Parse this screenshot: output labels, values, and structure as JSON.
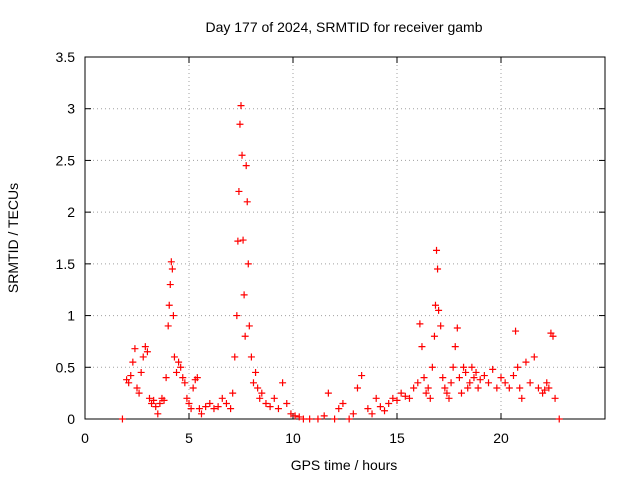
{
  "chart_data": {
    "type": "scatter",
    "title": "Day 177 of 2024, SRMTID for receiver gamb",
    "xlabel": "GPS time / hours",
    "ylabel": "SRMTID / TECUs",
    "xlim": [
      0,
      25
    ],
    "ylim": [
      0,
      3.5
    ],
    "xticks": [
      0,
      5,
      10,
      15,
      20
    ],
    "yticks": [
      0,
      0.5,
      1,
      1.5,
      2,
      2.5,
      3,
      3.5
    ],
    "xtick_labels": [
      "0",
      "5",
      "10",
      "15",
      "20"
    ],
    "ytick_labels": [
      "0",
      "0.5",
      "1",
      "1.5",
      "2",
      "2.5",
      "3",
      "3.5"
    ],
    "grid": true,
    "marker": "plus",
    "color": "#ff0000",
    "series": [
      {
        "name": "gamb",
        "x": [
          1.8,
          2.0,
          2.1,
          2.2,
          2.3,
          2.4,
          2.5,
          2.6,
          2.7,
          2.8,
          2.9,
          3.0,
          3.1,
          3.2,
          3.3,
          3.4,
          3.5,
          3.6,
          3.7,
          3.8,
          3.9,
          4.0,
          4.05,
          4.1,
          4.15,
          4.2,
          4.25,
          4.3,
          4.4,
          4.5,
          4.6,
          4.7,
          4.8,
          4.9,
          5.0,
          5.1,
          5.2,
          5.3,
          5.4,
          5.5,
          5.6,
          5.8,
          6.0,
          6.2,
          6.4,
          6.6,
          6.8,
          7.0,
          7.1,
          7.2,
          7.3,
          7.35,
          7.4,
          7.45,
          7.5,
          7.55,
          7.6,
          7.65,
          7.7,
          7.75,
          7.8,
          7.85,
          7.9,
          8.0,
          8.1,
          8.2,
          8.3,
          8.4,
          8.5,
          8.7,
          8.9,
          9.1,
          9.3,
          9.5,
          9.7,
          9.9,
          10.1,
          10.3,
          10.5,
          10.8,
          11.2,
          11.5,
          11.7,
          12.0,
          12.2,
          12.4,
          12.7,
          12.9,
          13.1,
          13.3,
          13.6,
          13.8,
          14.0,
          14.2,
          14.4,
          14.6,
          14.8,
          15.0,
          15.2,
          15.4,
          15.6,
          15.8,
          16.0,
          16.1,
          16.2,
          16.3,
          16.4,
          16.5,
          16.6,
          16.7,
          16.8,
          16.85,
          16.9,
          16.95,
          17.0,
          17.1,
          17.2,
          17.3,
          17.4,
          17.5,
          17.6,
          17.7,
          17.8,
          17.9,
          18.0,
          18.1,
          18.2,
          18.3,
          18.4,
          18.5,
          18.6,
          18.7,
          18.8,
          18.9,
          19.0,
          19.2,
          19.4,
          19.6,
          19.8,
          20.0,
          20.2,
          20.4,
          20.6,
          20.7,
          20.8,
          20.9,
          21.0,
          21.2,
          21.4,
          21.6,
          21.8,
          22.0,
          22.1,
          22.2,
          22.3,
          22.4,
          22.5,
          22.6,
          22.8
        ],
        "y": [
          0.0,
          0.38,
          0.35,
          0.42,
          0.55,
          0.68,
          0.3,
          0.25,
          0.45,
          0.6,
          0.7,
          0.65,
          0.2,
          0.15,
          0.18,
          0.12,
          0.05,
          0.15,
          0.2,
          0.18,
          0.4,
          0.9,
          1.1,
          1.3,
          1.52,
          1.45,
          1.0,
          0.6,
          0.45,
          0.55,
          0.5,
          0.4,
          0.35,
          0.2,
          0.15,
          0.1,
          0.3,
          0.38,
          0.4,
          0.1,
          0.05,
          0.12,
          0.15,
          0.1,
          0.12,
          0.2,
          0.15,
          0.1,
          0.25,
          0.6,
          1.0,
          1.72,
          2.2,
          2.85,
          3.03,
          2.55,
          1.73,
          1.2,
          0.8,
          2.45,
          2.1,
          1.5,
          0.9,
          0.6,
          0.35,
          0.45,
          0.3,
          0.2,
          0.25,
          0.15,
          0.12,
          0.2,
          0.1,
          0.35,
          0.15,
          0.05,
          0.03,
          0.02,
          0.0,
          0.0,
          0.0,
          0.03,
          0.25,
          0.0,
          0.1,
          0.15,
          0.0,
          0.05,
          0.3,
          0.42,
          0.1,
          0.05,
          0.2,
          0.12,
          0.08,
          0.15,
          0.2,
          0.18,
          0.25,
          0.22,
          0.2,
          0.3,
          0.35,
          0.92,
          0.7,
          0.4,
          0.25,
          0.3,
          0.2,
          0.5,
          0.8,
          1.1,
          1.63,
          1.45,
          1.05,
          0.9,
          0.4,
          0.3,
          0.25,
          0.2,
          0.35,
          0.5,
          0.7,
          0.88,
          0.4,
          0.25,
          0.5,
          0.45,
          0.3,
          0.35,
          0.5,
          0.4,
          0.45,
          0.3,
          0.38,
          0.42,
          0.35,
          0.48,
          0.3,
          0.4,
          0.35,
          0.3,
          0.42,
          0.85,
          0.5,
          0.3,
          0.2,
          0.55,
          0.35,
          0.6,
          0.3,
          0.25,
          0.28,
          0.35,
          0.3,
          0.83,
          0.8,
          0.2,
          0.0
        ]
      }
    ]
  }
}
